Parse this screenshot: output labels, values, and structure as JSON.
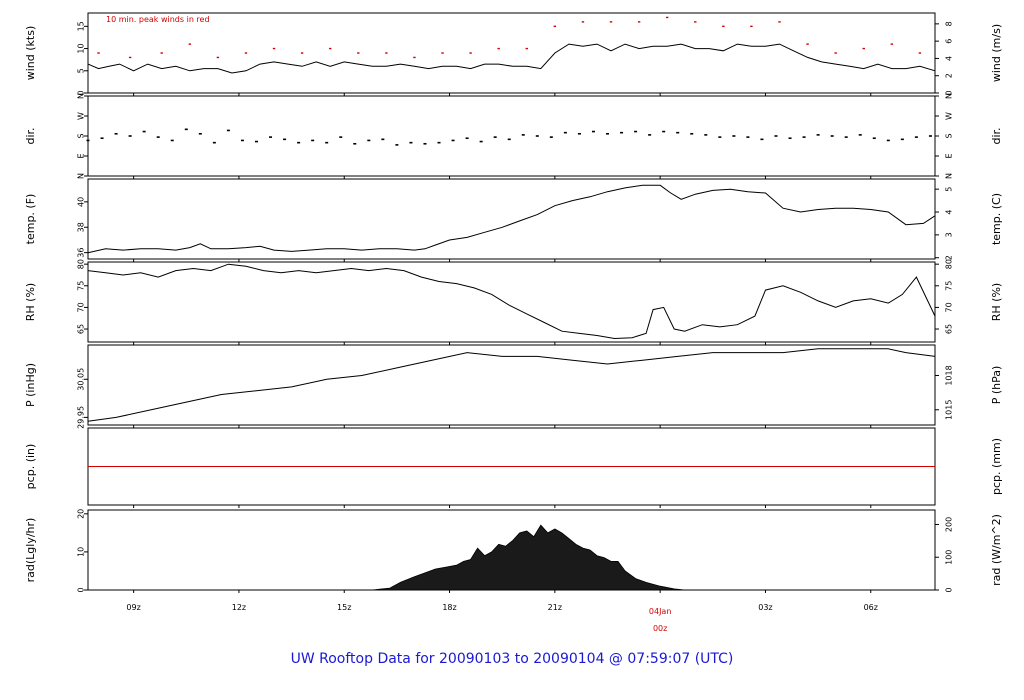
{
  "footer": {
    "text": "UW Rooftop Data for 20090103  to  20090104 @ 07:59:07  (UTC)",
    "color": "#1a1ad4"
  },
  "colors": {
    "line": "#000000",
    "peak": "#d40000",
    "precip": "#d40000",
    "accent": "#d40000"
  },
  "x_axis": {
    "unit": "hours since 2009-01-03 00z",
    "range": [
      7.7,
      31.83
    ],
    "ticks": [
      {
        "h": 9,
        "label": "09z"
      },
      {
        "h": 12,
        "label": "12z"
      },
      {
        "h": 15,
        "label": "15z"
      },
      {
        "h": 18,
        "label": "18z"
      },
      {
        "h": 21,
        "label": "21z"
      },
      {
        "h": 24,
        "label": "",
        "date_label": "04Jan",
        "time_label": "00z",
        "highlight": true
      },
      {
        "h": 27,
        "label": "03z"
      },
      {
        "h": 30,
        "label": "06z"
      }
    ]
  },
  "chart_data": [
    {
      "id": "wind",
      "type": "line",
      "ylabel_left": "wind (kts)",
      "ylabel_right": "wind (m/s)",
      "ylim": [
        0,
        18
      ],
      "left_ticks": [
        {
          "v": 0,
          "label": "0"
        },
        {
          "v": 5,
          "label": "5"
        },
        {
          "v": 10,
          "label": "10"
        },
        {
          "v": 15,
          "label": "15"
        }
      ],
      "right_ticks": [
        {
          "v": 0,
          "label": "0"
        },
        {
          "v": 3.889,
          "label": "2"
        },
        {
          "v": 7.778,
          "label": "4"
        },
        {
          "v": 11.667,
          "label": "6"
        },
        {
          "v": 15.556,
          "label": "8"
        }
      ],
      "annotation": "10 min. peak winds in red",
      "series": [
        {
          "name": "",
          "style": "line",
          "x": [
            7.7,
            8.0,
            8.3,
            8.6,
            9.0,
            9.4,
            9.8,
            10.2,
            10.6,
            11.0,
            11.4,
            11.8,
            12.2,
            12.6,
            13.0,
            13.4,
            13.8,
            14.2,
            14.6,
            15.0,
            15.4,
            15.8,
            16.2,
            16.6,
            17.0,
            17.4,
            17.8,
            18.2,
            18.6,
            19.0,
            19.4,
            19.8,
            20.2,
            20.6,
            21.0,
            21.4,
            21.8,
            22.2,
            22.6,
            23.0,
            23.4,
            23.8,
            24.2,
            24.6,
            25.0,
            25.4,
            25.8,
            26.2,
            26.6,
            27.0,
            27.4,
            27.8,
            28.2,
            28.6,
            29.0,
            29.4,
            29.8,
            30.2,
            30.6,
            31.0,
            31.4,
            31.83
          ],
          "y": [
            6.5,
            5.5,
            6,
            6.5,
            5,
            6.5,
            5.5,
            6,
            5,
            5.5,
            5.5,
            4.5,
            5,
            6.5,
            7,
            6.5,
            6,
            7,
            6,
            7,
            6.5,
            6,
            6,
            6.5,
            6,
            5.5,
            6,
            6,
            5.5,
            6.5,
            6.5,
            6,
            6,
            5.5,
            9,
            11,
            10.5,
            11,
            9.5,
            11,
            10,
            10.5,
            10.5,
            11,
            10,
            10,
            9.5,
            11,
            10.5,
            10.5,
            11,
            9.5,
            8,
            7,
            6.5,
            6,
            5.5,
            6.5,
            5.5,
            5.5,
            6,
            5
          ]
        },
        {
          "name": "",
          "style": "peak",
          "x": [
            8.0,
            8.9,
            9.8,
            10.6,
            11.4,
            12.2,
            13.0,
            13.8,
            14.6,
            15.4,
            16.2,
            17.0,
            17.8,
            18.6,
            19.4,
            20.2,
            21.0,
            21.8,
            22.6,
            23.4,
            24.2,
            25.0,
            25.8,
            26.6,
            27.4,
            28.2,
            29.0,
            29.8,
            30.6,
            31.4
          ],
          "y": [
            9,
            8,
            9,
            11,
            8,
            9,
            10,
            9,
            10,
            9,
            9,
            8,
            9,
            9,
            10,
            10,
            15,
            16,
            16,
            16,
            17,
            16,
            15,
            15,
            16,
            11,
            9,
            10,
            11,
            9
          ]
        }
      ]
    },
    {
      "id": "dir",
      "type": "scatter",
      "ylabel_left": "dir.",
      "ylabel_right": "dir.",
      "ylim": [
        0,
        360
      ],
      "left_ticks": [
        {
          "v": 0,
          "label": "N"
        },
        {
          "v": 90,
          "label": "E"
        },
        {
          "v": 180,
          "label": "S"
        },
        {
          "v": 270,
          "label": "W"
        },
        {
          "v": 360,
          "label": "N"
        }
      ],
      "right_ticks": [
        {
          "v": 0,
          "label": "N"
        },
        {
          "v": 90,
          "label": "E"
        },
        {
          "v": 180,
          "label": "S"
        },
        {
          "v": 270,
          "label": "W"
        },
        {
          "v": 360,
          "label": "N"
        }
      ],
      "series": [
        {
          "name": "",
          "x": [
            7.7,
            8.1,
            8.5,
            8.9,
            9.3,
            9.7,
            10.1,
            10.5,
            10.9,
            11.3,
            11.7,
            12.1,
            12.5,
            12.9,
            13.3,
            13.7,
            14.1,
            14.5,
            14.9,
            15.3,
            15.7,
            16.1,
            16.5,
            16.9,
            17.3,
            17.7,
            18.1,
            18.5,
            18.9,
            19.3,
            19.7,
            20.1,
            20.5,
            20.9,
            21.3,
            21.7,
            22.1,
            22.5,
            22.9,
            23.3,
            23.7,
            24.1,
            24.5,
            24.9,
            25.3,
            25.7,
            26.1,
            26.5,
            26.9,
            27.3,
            27.7,
            28.1,
            28.5,
            28.9,
            29.3,
            29.7,
            30.1,
            30.5,
            30.9,
            31.3,
            31.7
          ],
          "y": [
            160,
            170,
            190,
            180,
            200,
            175,
            160,
            210,
            190,
            150,
            205,
            160,
            155,
            175,
            165,
            150,
            160,
            150,
            175,
            145,
            160,
            165,
            140,
            150,
            145,
            150,
            160,
            170,
            155,
            175,
            165,
            185,
            180,
            175,
            195,
            190,
            200,
            190,
            195,
            200,
            185,
            200,
            195,
            190,
            185,
            175,
            180,
            175,
            165,
            180,
            170,
            175,
            185,
            180,
            175,
            185,
            170,
            160,
            165,
            175,
            180
          ]
        }
      ]
    },
    {
      "id": "temp",
      "type": "line",
      "ylabel_left": "temp. (F)",
      "ylabel_right": "temp. (C)",
      "ylim": [
        35.5,
        41.8
      ],
      "left_ticks": [
        {
          "v": 36,
          "label": "36"
        },
        {
          "v": 38,
          "label": "38"
        },
        {
          "v": 40,
          "label": "40"
        }
      ],
      "right_ticks": [
        {
          "v": 35.6,
          "label": "2"
        },
        {
          "v": 37.4,
          "label": "3"
        },
        {
          "v": 39.2,
          "label": "4"
        },
        {
          "v": 41.0,
          "label": "5"
        }
      ],
      "series": [
        {
          "name": "",
          "x": [
            7.7,
            8.2,
            8.7,
            9.2,
            9.7,
            10.2,
            10.6,
            10.9,
            11.2,
            11.7,
            12.2,
            12.6,
            13.0,
            13.5,
            14.0,
            14.5,
            15.0,
            15.5,
            16.0,
            16.5,
            17.0,
            17.3,
            17.6,
            18.0,
            18.5,
            19.0,
            19.5,
            20.0,
            20.5,
            21.0,
            21.5,
            22.0,
            22.5,
            23.0,
            23.5,
            24.0,
            24.3,
            24.6,
            25.0,
            25.5,
            26.0,
            26.5,
            27.0,
            27.5,
            28.0,
            28.5,
            29.0,
            29.5,
            30.0,
            30.5,
            31.0,
            31.5,
            31.83
          ],
          "y": [
            36.0,
            36.3,
            36.2,
            36.3,
            36.3,
            36.2,
            36.4,
            36.7,
            36.3,
            36.3,
            36.4,
            36.5,
            36.2,
            36.1,
            36.2,
            36.3,
            36.3,
            36.2,
            36.3,
            36.3,
            36.2,
            36.3,
            36.6,
            37.0,
            37.2,
            37.6,
            38.0,
            38.5,
            39.0,
            39.7,
            40.1,
            40.4,
            40.8,
            41.1,
            41.3,
            41.3,
            40.7,
            40.2,
            40.6,
            40.9,
            41.0,
            40.8,
            40.7,
            39.5,
            39.2,
            39.4,
            39.5,
            39.5,
            39.4,
            39.2,
            38.2,
            38.3,
            38.9
          ]
        }
      ]
    },
    {
      "id": "rh",
      "type": "line",
      "ylabel_left": "RH (%)",
      "ylabel_right": "RH (%)",
      "ylim": [
        62.0,
        80.5
      ],
      "left_ticks": [
        {
          "v": 65,
          "label": "65"
        },
        {
          "v": 70,
          "label": "70"
        },
        {
          "v": 75,
          "label": "75"
        },
        {
          "v": 80,
          "label": "80"
        }
      ],
      "right_ticks": [
        {
          "v": 65,
          "label": "65"
        },
        {
          "v": 70,
          "label": "70"
        },
        {
          "v": 75,
          "label": "75"
        },
        {
          "v": 80,
          "label": "80"
        }
      ],
      "series": [
        {
          "name": "",
          "x": [
            7.7,
            8.2,
            8.7,
            9.2,
            9.7,
            10.2,
            10.7,
            11.2,
            11.7,
            12.2,
            12.7,
            13.2,
            13.7,
            14.2,
            14.7,
            15.2,
            15.7,
            16.2,
            16.7,
            17.2,
            17.7,
            18.2,
            18.7,
            19.2,
            19.7,
            20.2,
            20.7,
            21.2,
            21.7,
            22.2,
            22.7,
            23.2,
            23.6,
            23.8,
            24.1,
            24.4,
            24.7,
            25.2,
            25.7,
            26.2,
            26.7,
            27.0,
            27.5,
            28.0,
            28.5,
            29.0,
            29.5,
            30.0,
            30.5,
            30.9,
            31.3,
            31.83
          ],
          "y": [
            78.5,
            78.0,
            77.5,
            78.0,
            77.0,
            78.5,
            79.0,
            78.5,
            80.0,
            79.5,
            78.5,
            78.0,
            78.5,
            78.0,
            78.5,
            79.0,
            78.5,
            79.0,
            78.5,
            77.0,
            76.0,
            75.5,
            74.5,
            73.0,
            70.5,
            68.5,
            66.5,
            64.5,
            64.0,
            63.5,
            62.8,
            63.0,
            64.0,
            69.5,
            70.0,
            65.0,
            64.5,
            66.0,
            65.5,
            66.0,
            68.0,
            74.0,
            75.0,
            73.5,
            71.5,
            70.0,
            71.5,
            72.0,
            71.0,
            73.0,
            77.0,
            68.0
          ]
        }
      ]
    },
    {
      "id": "pres",
      "type": "line",
      "ylabel_left": "P (inHg)",
      "ylabel_right": "P (hPa)",
      "ylim": [
        29.93,
        30.14
      ],
      "left_ticks": [
        {
          "v": 29.95,
          "label": "29.95"
        },
        {
          "v": 30.05,
          "label": "30.05"
        }
      ],
      "right_ticks": [
        {
          "v": 29.97,
          "label": "1015"
        },
        {
          "v": 30.06,
          "label": "1018"
        }
      ],
      "series": [
        {
          "name": "",
          "x": [
            7.7,
            8.5,
            9.5,
            10.5,
            11.5,
            12.5,
            13.5,
            14.5,
            15.5,
            16.5,
            17.5,
            18.5,
            19.5,
            20.5,
            21.5,
            22.5,
            23.5,
            24.5,
            25.5,
            26.5,
            27.5,
            28.5,
            29.5,
            30.5,
            31.0,
            31.83
          ],
          "y": [
            29.94,
            29.95,
            29.97,
            29.99,
            30.01,
            30.02,
            30.03,
            30.05,
            30.06,
            30.08,
            30.1,
            30.12,
            30.11,
            30.11,
            30.1,
            30.09,
            30.1,
            30.11,
            30.12,
            30.12,
            30.12,
            30.13,
            30.13,
            30.13,
            30.12,
            30.11
          ]
        }
      ]
    },
    {
      "id": "pcp",
      "type": "line",
      "ylabel_left": "pcp. (in)",
      "ylabel_right": "pcp. (mm)",
      "ylim": [
        -0.05,
        0.05
      ],
      "left_ticks": [],
      "right_ticks": [],
      "series": [
        {
          "name": "",
          "x": [
            7.7,
            31.83
          ],
          "y": [
            0,
            0
          ]
        }
      ]
    },
    {
      "id": "rad",
      "type": "area",
      "ylabel_left": "rad(Lgly/hr)",
      "ylabel_right": "rad (W/m^2)",
      "ylim": [
        0,
        21
      ],
      "left_ticks": [
        {
          "v": 0,
          "label": "0"
        },
        {
          "v": 10,
          "label": "10"
        },
        {
          "v": 20,
          "label": "20"
        }
      ],
      "right_ticks": [
        {
          "v": 0,
          "label": "0"
        },
        {
          "v": 8.6,
          "label": "100"
        },
        {
          "v": 17.2,
          "label": "200"
        }
      ],
      "series": [
        {
          "name": "",
          "x": [
            15.8,
            16.3,
            16.6,
            17.0,
            17.3,
            17.6,
            17.9,
            18.2,
            18.4,
            18.6,
            18.8,
            19.0,
            19.2,
            19.4,
            19.6,
            19.8,
            20.0,
            20.2,
            20.4,
            20.6,
            20.8,
            21.0,
            21.2,
            21.4,
            21.6,
            21.8,
            22.0,
            22.2,
            22.4,
            22.6,
            22.8,
            23.0,
            23.3,
            23.6,
            24.0,
            24.4,
            24.7
          ],
          "y": [
            0,
            0.5,
            2,
            3.5,
            4.5,
            5.5,
            6,
            6.5,
            7.5,
            8,
            11,
            9,
            10,
            12,
            11.5,
            13,
            15,
            15.5,
            14,
            17,
            15,
            16,
            15,
            13.5,
            12,
            11,
            10.5,
            9,
            8.5,
            7.5,
            7.5,
            5,
            3,
            2,
            1,
            0.3,
            0
          ]
        }
      ]
    }
  ]
}
